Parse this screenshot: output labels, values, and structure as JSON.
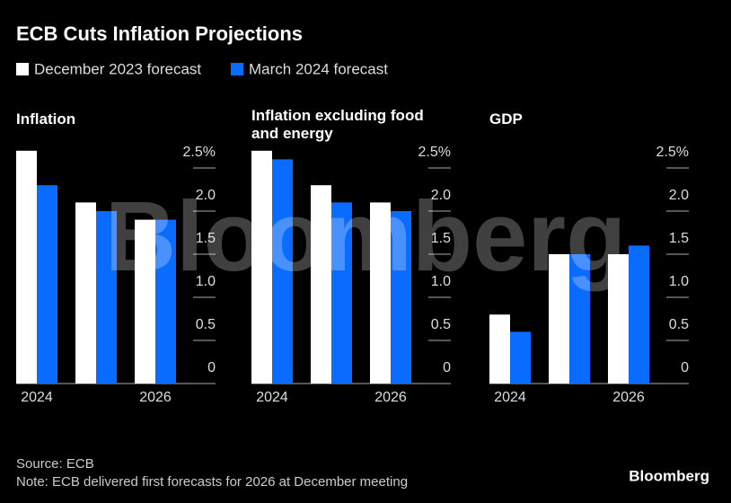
{
  "header": {
    "title": "ECB Cuts Inflation Projections"
  },
  "chart_data": [
    {
      "type": "bar",
      "title": "Inflation",
      "categories": [
        "2024",
        null,
        "2026"
      ],
      "series": [
        {
          "name": "December 2023 forecast",
          "color": "#ffffff",
          "values": [
            2.7,
            2.1,
            1.9
          ]
        },
        {
          "name": "March 2024 forecast",
          "color": "#0a6cff",
          "values": [
            2.3,
            2.0,
            1.9
          ]
        }
      ],
      "ylim": [
        0,
        2.8
      ],
      "yticks": [
        0,
        0.5,
        {
          "value": 1,
          "label": "1.0"
        },
        1.5,
        {
          "value": 2,
          "label": "2.0"
        },
        {
          "value": 2.5,
          "label": "2.5%"
        }
      ]
    },
    {
      "type": "bar",
      "title": "Inflation excluding food and energy",
      "categories": [
        "2024",
        null,
        "2026"
      ],
      "series": [
        {
          "name": "December 2023 forecast",
          "color": "#ffffff",
          "values": [
            2.7,
            2.3,
            2.1
          ]
        },
        {
          "name": "March 2024 forecast",
          "color": "#0a6cff",
          "values": [
            2.6,
            2.1,
            2.0
          ]
        }
      ],
      "ylim": [
        0,
        2.8
      ],
      "yticks": [
        0,
        0.5,
        {
          "value": 1,
          "label": "1.0"
        },
        1.5,
        {
          "value": 2,
          "label": "2.0"
        },
        {
          "value": 2.5,
          "label": "2.5%"
        }
      ]
    },
    {
      "type": "bar",
      "title": "GDP",
      "categories": [
        "2024",
        null,
        "2026"
      ],
      "series": [
        {
          "name": "December 2023 forecast",
          "color": "#ffffff",
          "values": [
            0.8,
            1.5,
            1.5
          ]
        },
        {
          "name": "March 2024 forecast",
          "color": "#0a6cff",
          "values": [
            0.6,
            1.5,
            1.6
          ]
        }
      ],
      "ylim": [
        0,
        2.8
      ],
      "yticks": [
        0,
        0.5,
        {
          "value": 1,
          "label": "1.0"
        },
        1.5,
        {
          "value": 2,
          "label": "2.0"
        },
        {
          "value": 2.5,
          "label": "2.5%"
        }
      ]
    }
  ],
  "footer": {
    "source": "Source: ECB",
    "note": "Note: ECB delivered first forecasts for 2026 at December meeting",
    "brand": "Bloomberg",
    "watermark": "Bloomberg"
  }
}
